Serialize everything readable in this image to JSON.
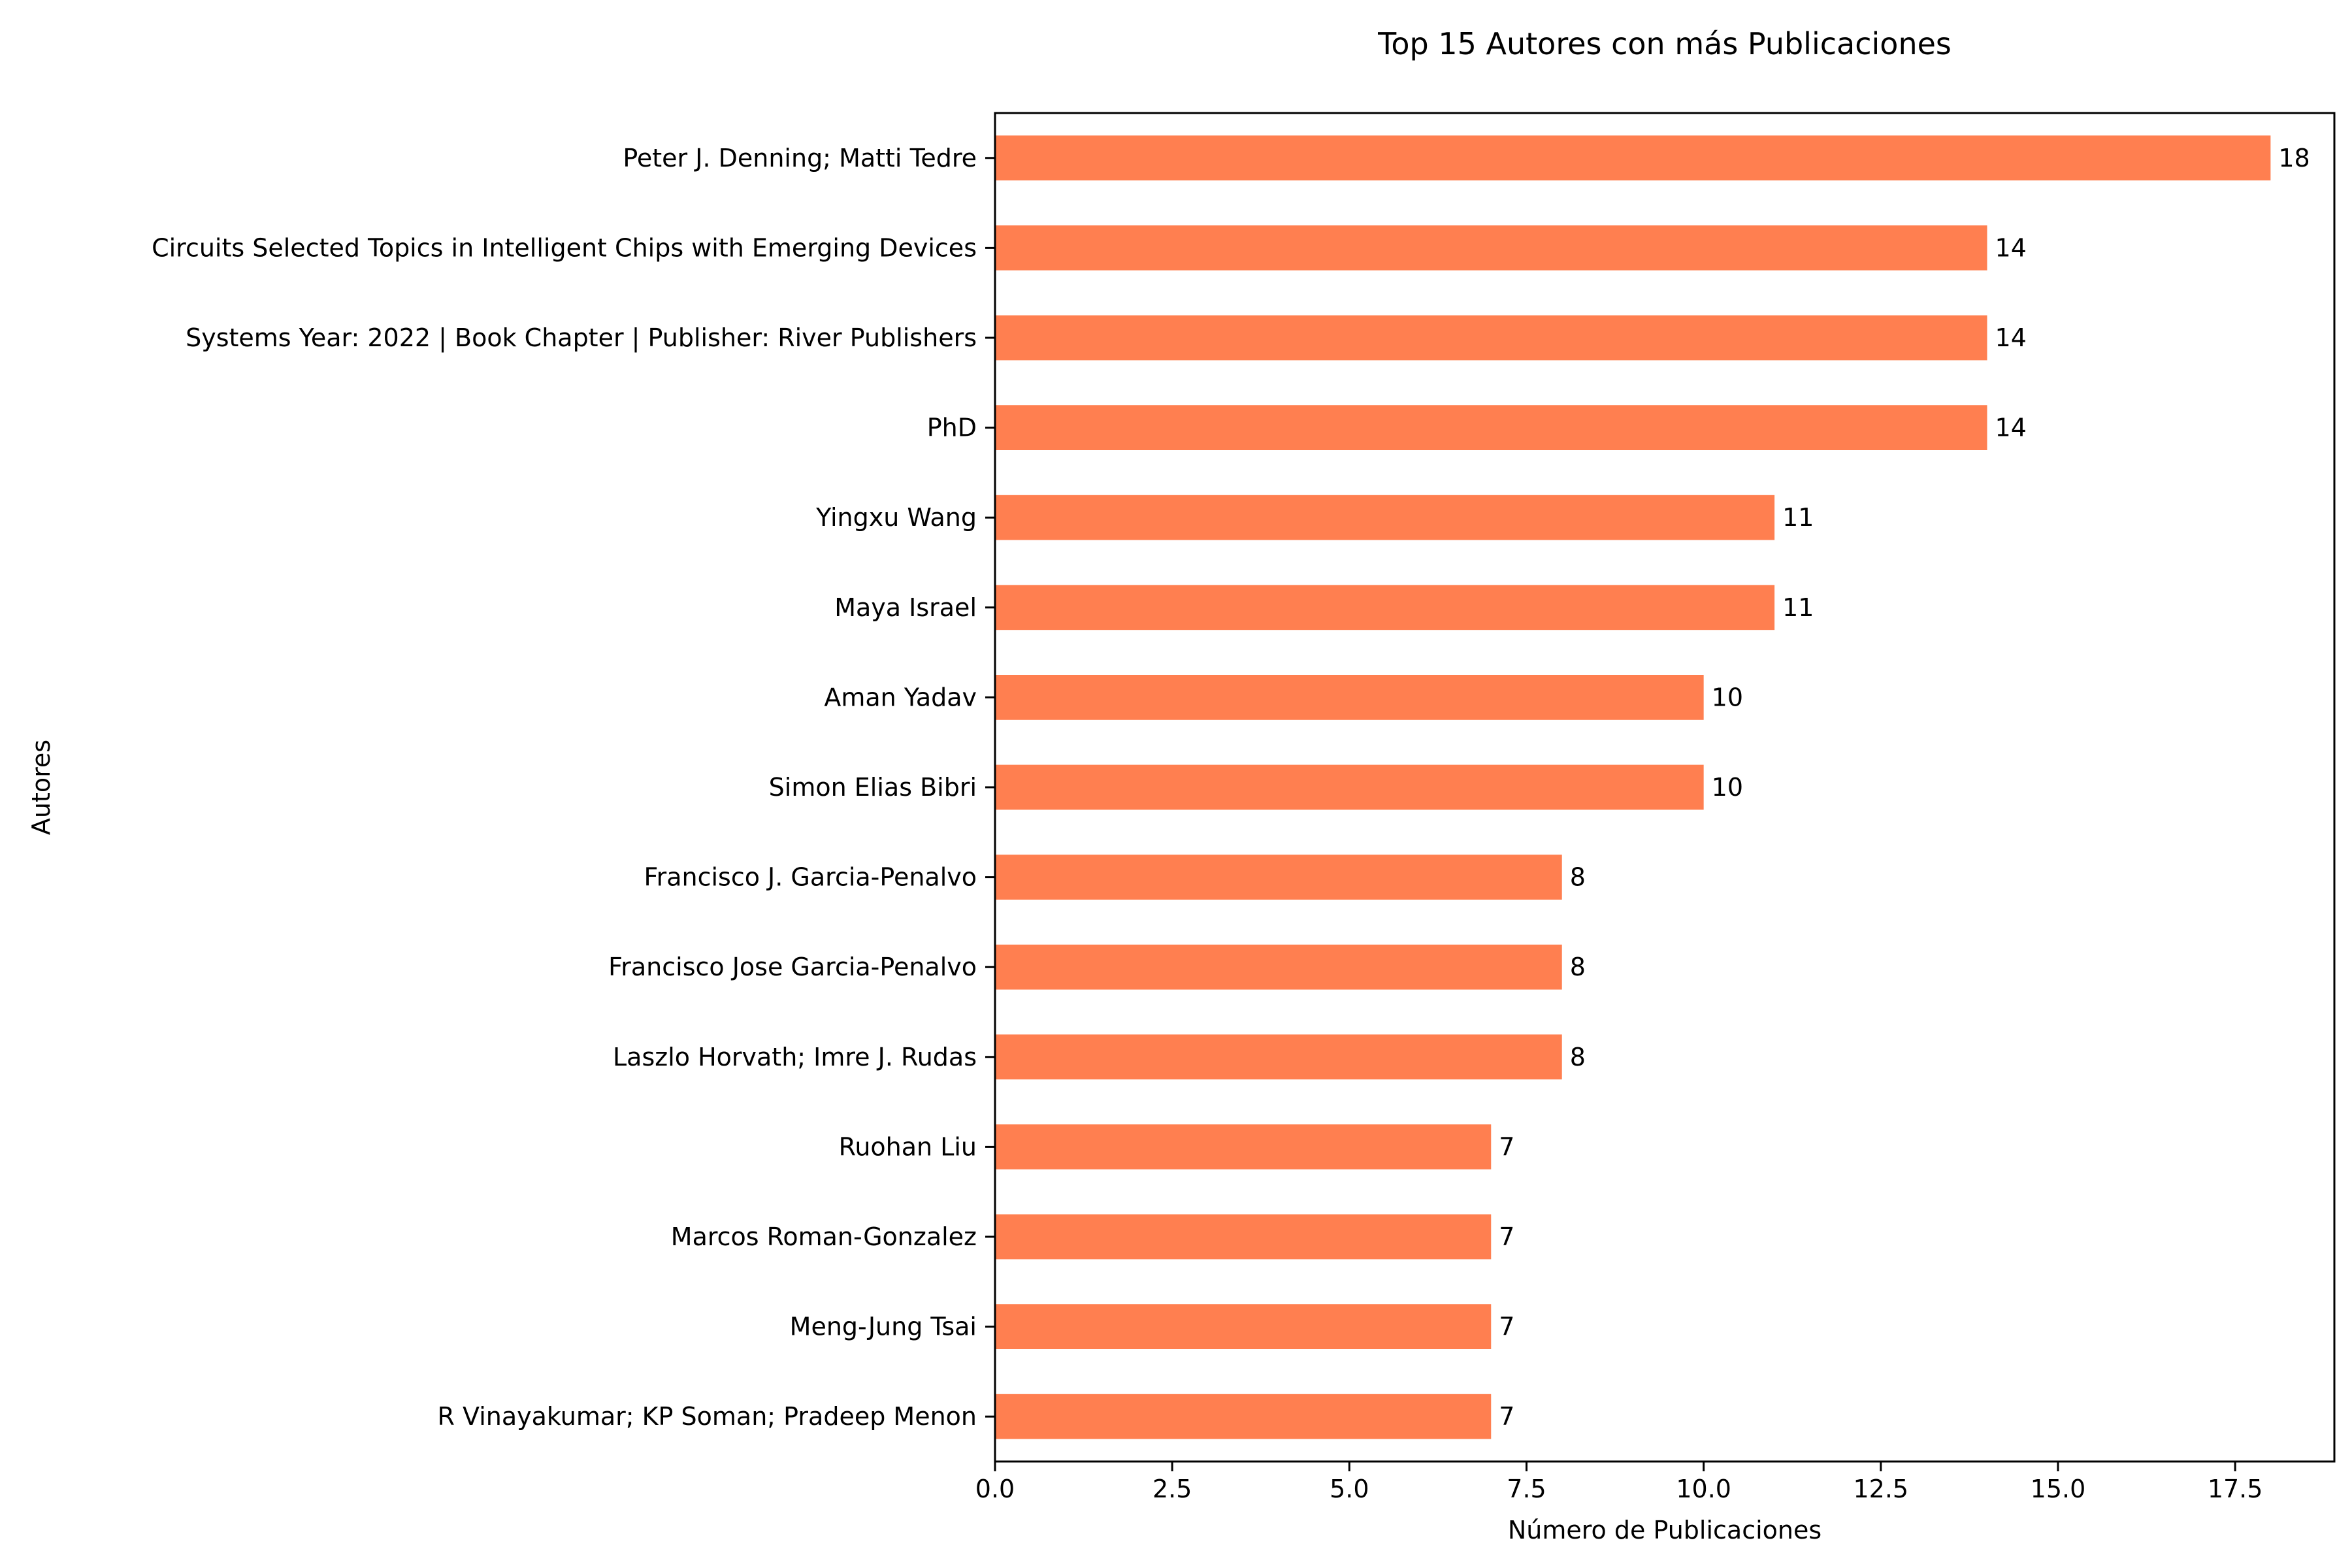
{
  "chart_data": {
    "type": "bar",
    "orientation": "horizontal",
    "title": "Top 15 Autores con más Publicaciones",
    "xlabel": "Número de Publicaciones",
    "ylabel": "Autores",
    "xlim": [
      0,
      18.9
    ],
    "xticks": [
      "0.0",
      "2.5",
      "5.0",
      "7.5",
      "10.0",
      "12.5",
      "15.0",
      "17.5"
    ],
    "xtick_values": [
      0,
      2.5,
      5,
      7.5,
      10,
      12.5,
      15,
      17.5
    ],
    "categories": [
      "Peter J. Denning; Matti Tedre",
      "Circuits Selected Topics in Intelligent Chips with Emerging Devices",
      "Systems Year: 2022 | Book Chapter | Publisher: River Publishers",
      "PhD",
      "Yingxu Wang",
      "Maya Israel",
      "Aman Yadav",
      "Simon Elias Bibri",
      "Francisco J. Garcia-Penalvo",
      "Francisco Jose Garcia-Penalvo",
      "Laszlo Horvath; Imre J. Rudas",
      "Ruohan Liu",
      "Marcos Roman-Gonzalez",
      "Meng-Jung Tsai",
      "R Vinayakumar; KP Soman; Pradeep Menon"
    ],
    "values": [
      18,
      14,
      14,
      14,
      11,
      11,
      10,
      10,
      8,
      8,
      8,
      7,
      7,
      7,
      7
    ],
    "data_labels": [
      "18",
      "14",
      "14",
      "14",
      "11",
      "11",
      "10",
      "10",
      "8",
      "8",
      "8",
      "7",
      "7",
      "7",
      "7"
    ],
    "bar_color": "#FF7F50",
    "grid": false
  }
}
